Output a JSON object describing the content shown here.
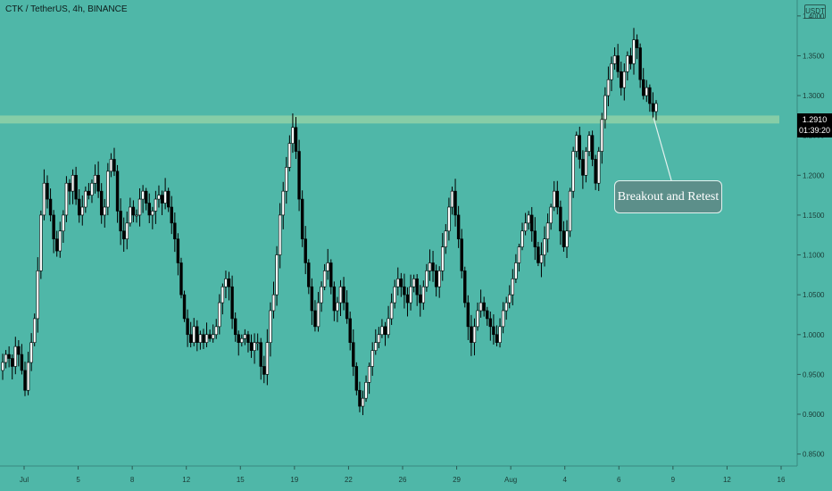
{
  "header": {
    "symbol_title": "CTK / TetherUS, 4h, BINANCE",
    "unit_badge": "USDT"
  },
  "price_tag": {
    "price": "1.2910",
    "countdown": "01:39:20"
  },
  "annotation": {
    "text": "Breakout and Retest"
  },
  "colors": {
    "background": "#4fb7a8",
    "zone": "#8fd1a7",
    "candle_up": "#ffffff",
    "candle_down": "#000000",
    "price_tag_bg": "#000000"
  },
  "chart_data": {
    "type": "candlestick",
    "title": "CTK / TetherUS, 4h, BINANCE",
    "y_axis": {
      "ticks": [
        "1.4000",
        "1.3500",
        "1.3000",
        "1.2500",
        "1.2000",
        "1.1500",
        "1.1000",
        "1.0500",
        "1.0000",
        "0.9500",
        "0.9000",
        "0.8500"
      ],
      "range": [
        0.835,
        1.42
      ]
    },
    "x_axis": {
      "ticks": [
        "Jul",
        "5",
        "8",
        "12",
        "15",
        "19",
        "22",
        "26",
        "29",
        "Aug",
        "4",
        "6",
        "9",
        "12",
        "16"
      ]
    },
    "zone": {
      "low": 1.265,
      "high": 1.275
    },
    "close": [
      0.965,
      0.975,
      0.97,
      0.96,
      0.985,
      0.975,
      0.955,
      0.93,
      0.965,
      0.99,
      1.02,
      1.08,
      1.15,
      1.19,
      1.17,
      1.15,
      1.12,
      1.105,
      1.13,
      1.15,
      1.19,
      1.18,
      1.2,
      1.17,
      1.15,
      1.16,
      1.18,
      1.175,
      1.19,
      1.2,
      1.18,
      1.15,
      1.16,
      1.205,
      1.22,
      1.205,
      1.155,
      1.13,
      1.12,
      1.14,
      1.16,
      1.15,
      1.15,
      1.17,
      1.18,
      1.165,
      1.15,
      1.155,
      1.17,
      1.175,
      1.165,
      1.18,
      1.16,
      1.14,
      1.12,
      1.09,
      1.05,
      1.02,
      1.0,
      0.99,
      1.01,
      0.99,
      1.0,
      0.99,
      1.0,
      0.995,
      1.0,
      1.01,
      1.04,
      1.06,
      1.07,
      1.06,
      1.02,
      1.0,
      0.99,
      0.995,
      1.0,
      0.99,
      0.98,
      0.99,
      0.99,
      0.96,
      0.95,
      0.99,
      1.03,
      1.05,
      1.1,
      1.15,
      1.18,
      1.21,
      1.24,
      1.26,
      1.23,
      1.17,
      1.12,
      1.09,
      1.06,
      1.03,
      1.01,
      1.04,
      1.06,
      1.08,
      1.09,
      1.06,
      1.03,
      1.04,
      1.06,
      1.04,
      1.02,
      0.99,
      0.96,
      0.93,
      0.91,
      0.92,
      0.94,
      0.96,
      0.98,
      0.99,
      1.0,
      1.01,
      1.0,
      1.02,
      1.04,
      1.06,
      1.07,
      1.06,
      1.05,
      1.04,
      1.06,
      1.07,
      1.05,
      1.04,
      1.06,
      1.08,
      1.09,
      1.08,
      1.06,
      1.08,
      1.11,
      1.13,
      1.16,
      1.18,
      1.15,
      1.12,
      1.08,
      1.04,
      1.01,
      0.99,
      1.01,
      1.03,
      1.04,
      1.03,
      1.02,
      1.01,
      1.0,
      0.99,
      1.01,
      1.03,
      1.04,
      1.05,
      1.07,
      1.09,
      1.11,
      1.13,
      1.14,
      1.15,
      1.13,
      1.11,
      1.09,
      1.1,
      1.12,
      1.14,
      1.16,
      1.18,
      1.16,
      1.13,
      1.11,
      1.13,
      1.18,
      1.23,
      1.25,
      1.22,
      1.2,
      1.23,
      1.25,
      1.22,
      1.19,
      1.23,
      1.27,
      1.3,
      1.32,
      1.34,
      1.35,
      1.33,
      1.31,
      1.33,
      1.35,
      1.34,
      1.37,
      1.36,
      1.32,
      1.3,
      1.31,
      1.29,
      1.28,
      1.29
    ]
  }
}
